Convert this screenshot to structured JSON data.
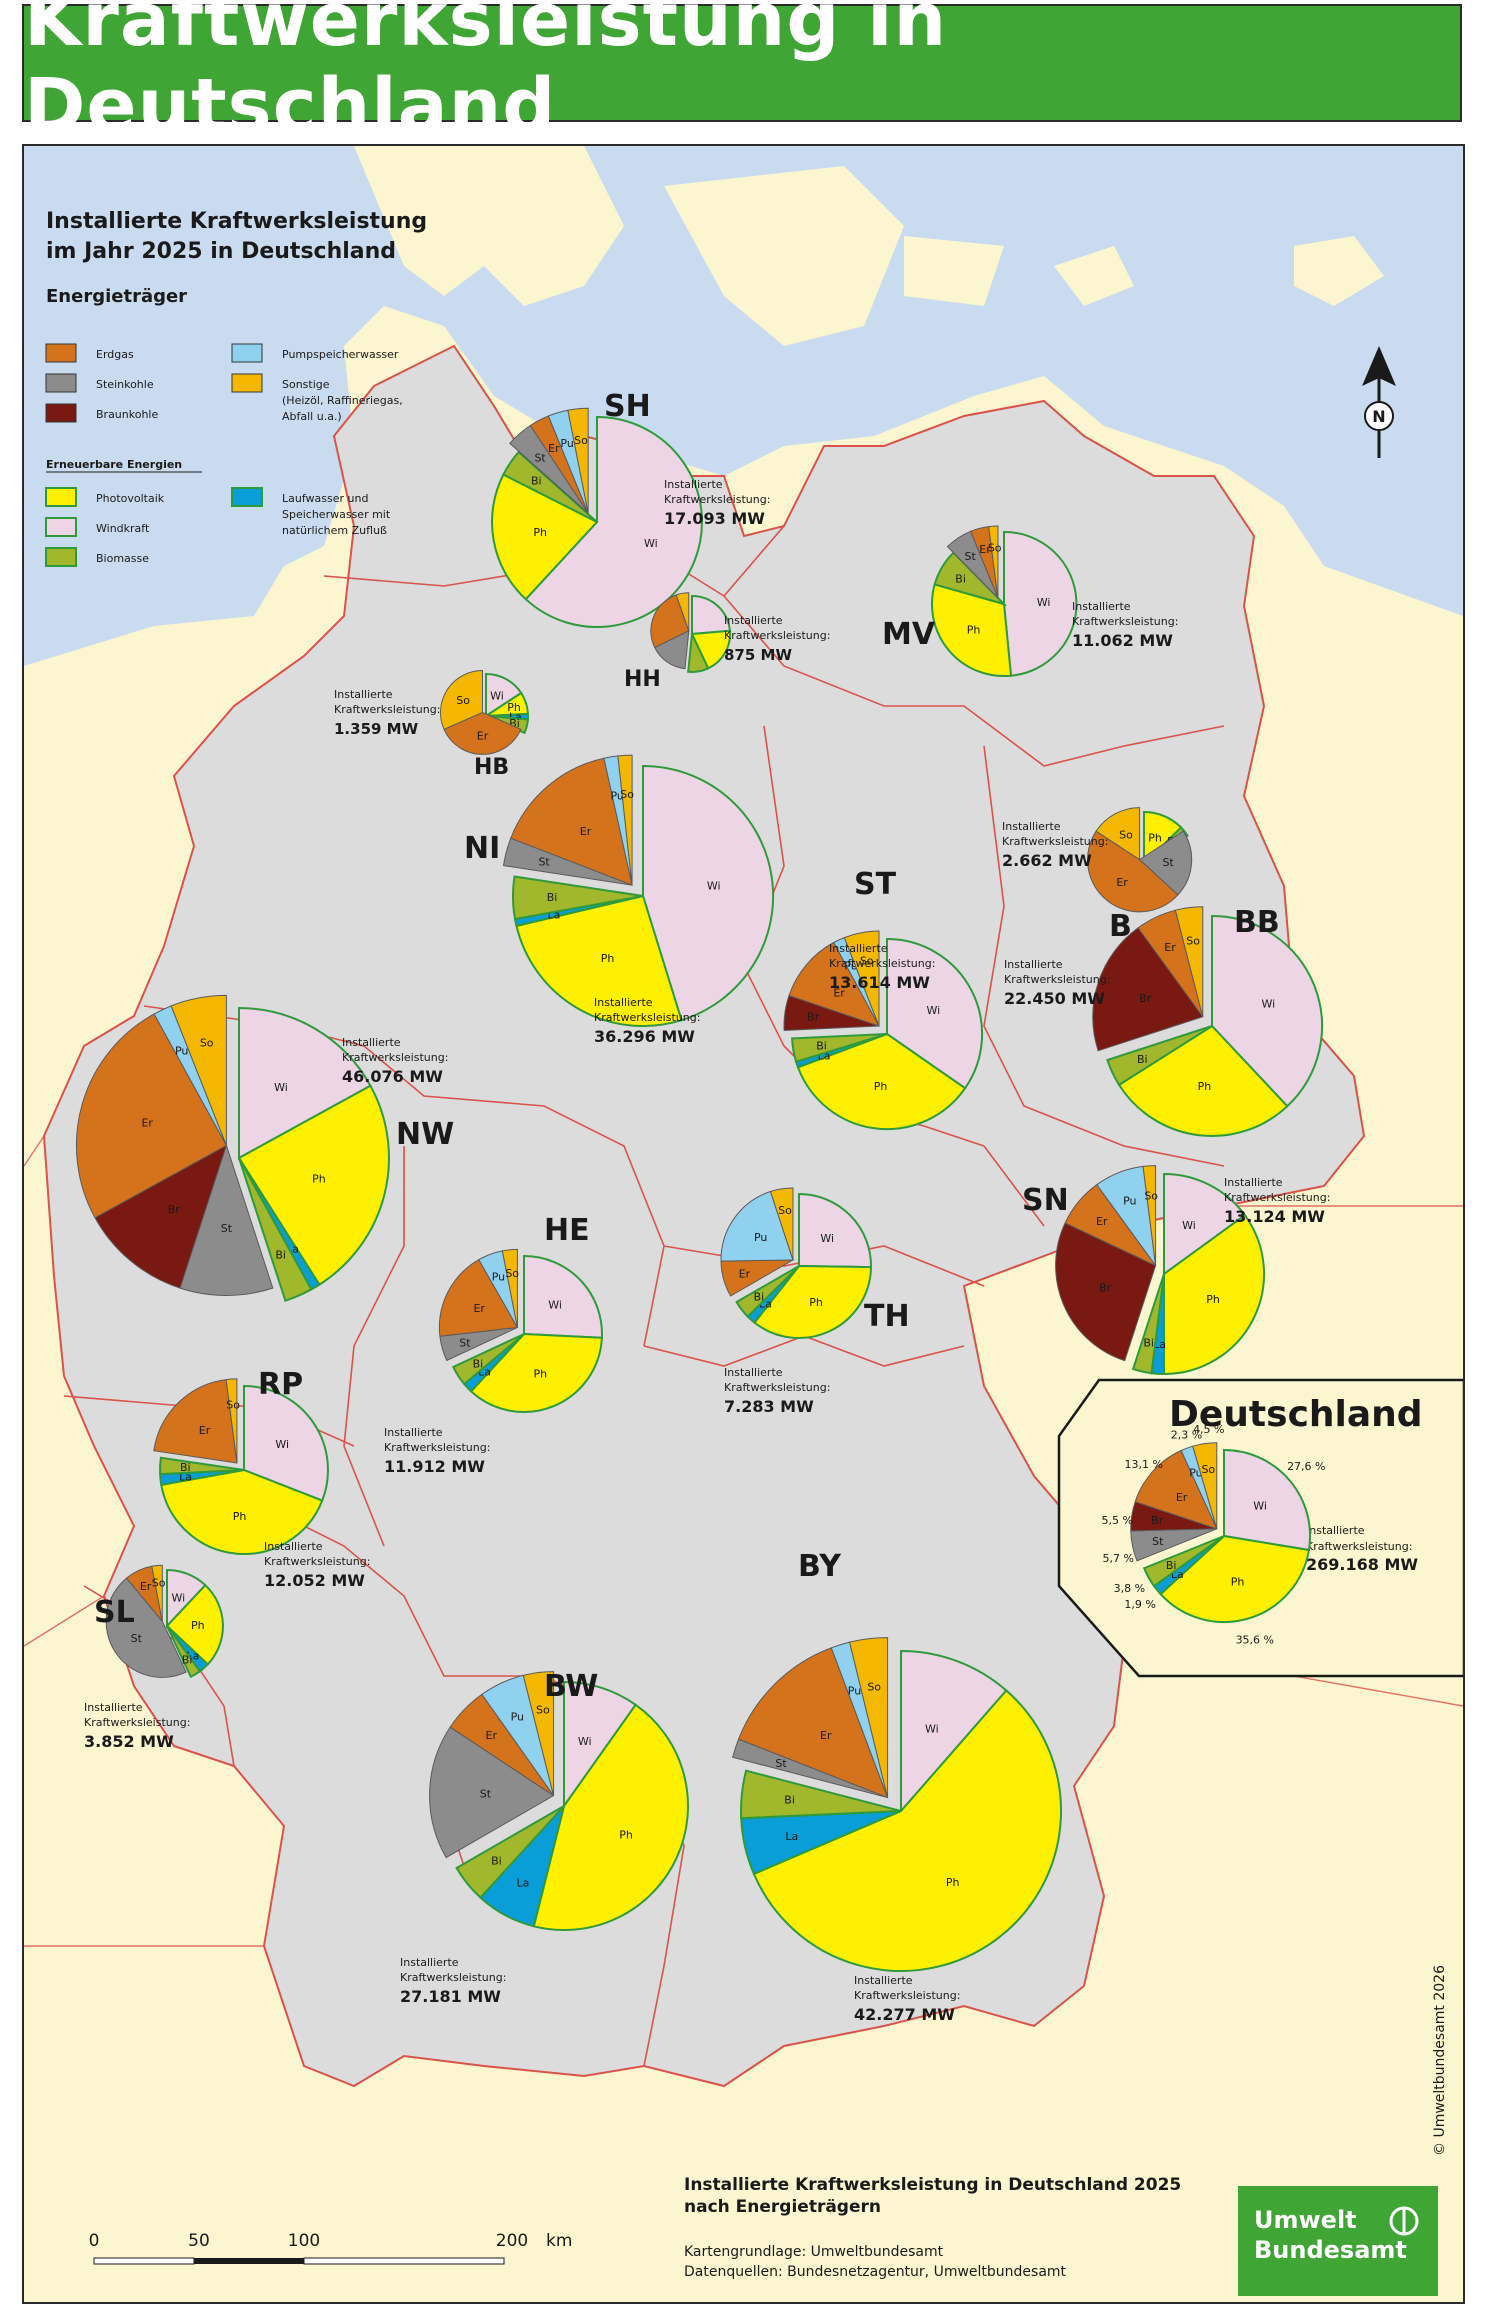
{
  "title": "Kraftwerksleistung in Deutschland",
  "legend": {
    "heading_line1": "Installierte Kraftwerksleistung",
    "heading_line2": "im Jahr 2025 in Deutschland",
    "subheading": "Energieträger",
    "renewables_heading": "Erneuerbare Energien",
    "conventional": [
      {
        "key": "Er",
        "label": "Erdgas",
        "color": "#d4731c"
      },
      {
        "key": "St",
        "label": "Steinkohle",
        "color": "#8c8c8c"
      },
      {
        "key": "Br",
        "label": "Braunkohle",
        "color": "#7a1812"
      },
      {
        "key": "Pu",
        "label": "Pumpspeicherwasser",
        "color": "#8fd1ee"
      },
      {
        "key": "So",
        "label": "Sonstige",
        "label2": "(Heizöl, Raffineriegas,",
        "label3": "Abfall u.a.)",
        "color": "#f5b800"
      }
    ],
    "renewable": [
      {
        "key": "Ph",
        "label": "Photovoltaik",
        "color": "#fff000"
      },
      {
        "key": "Wi",
        "label": "Windkraft",
        "color": "#edd5e6"
      },
      {
        "key": "Bi",
        "label": "Biomasse",
        "color": "#a2b82c"
      },
      {
        "key": "La",
        "label": "Laufwasser und",
        "label2": "Speicherwasser mit",
        "label3": "natürlichem Zufluß",
        "color": "#0a9ed8"
      }
    ]
  },
  "capacity_label_line1": "Installierte",
  "capacity_label_line2": "Kraftwerksleistung:",
  "states": [
    {
      "code": "SH",
      "capacity": "17.093 MW"
    },
    {
      "code": "MV",
      "capacity": "11.062 MW"
    },
    {
      "code": "HH",
      "capacity": "875 MW"
    },
    {
      "code": "HB",
      "capacity": "1.359 MW"
    },
    {
      "code": "NI",
      "capacity": "36.296 MW"
    },
    {
      "code": "B",
      "capacity": "2.662 MW"
    },
    {
      "code": "BB",
      "capacity": "22.450 MW"
    },
    {
      "code": "ST",
      "capacity": "13.614 MW"
    },
    {
      "code": "NW",
      "capacity": "46.076 MW"
    },
    {
      "code": "HE",
      "capacity": "11.912 MW"
    },
    {
      "code": "TH",
      "capacity": "7.283 MW"
    },
    {
      "code": "SN",
      "capacity": "13.124 MW"
    },
    {
      "code": "RP",
      "capacity": "12.052 MW"
    },
    {
      "code": "SL",
      "capacity": "3.852 MW"
    },
    {
      "code": "BW",
      "capacity": "27.181 MW"
    },
    {
      "code": "BY",
      "capacity": "42.277 MW"
    }
  ],
  "germany": {
    "name": "Deutschland",
    "capacity": "269.168 MW",
    "shares": [
      {
        "key": "Wi",
        "percent": 27.6,
        "label": "27,6 %"
      },
      {
        "key": "Ph",
        "percent": 35.6,
        "label": "35,6 %"
      },
      {
        "key": "La",
        "percent": 1.9,
        "label": "1,9 %"
      },
      {
        "key": "Bi",
        "percent": 3.8,
        "label": "3,8 %"
      },
      {
        "key": "St",
        "percent": 5.7,
        "label": "5,7 %"
      },
      {
        "key": "Br",
        "percent": 5.5,
        "label": "5,5 %"
      },
      {
        "key": "Er",
        "percent": 13.1,
        "label": "13,1 %"
      },
      {
        "key": "Pu",
        "percent": 2.3,
        "label": "2,3 %"
      },
      {
        "key": "So",
        "percent": 4.5,
        "label": "4,5 %"
      }
    ]
  },
  "north_arrow": "N",
  "scale": {
    "ticks": [
      "0",
      "50",
      "100",
      "200"
    ],
    "unit": "km"
  },
  "footer": {
    "title_line1": "Installierte Kraftwerksleistung in Deutschland 2025",
    "title_line2": "nach Energieträgern",
    "source_map": "Kartengrundlage:  Umweltbundesamt",
    "source_data": "Datenquellen:  Bundesnetzagentur, Umweltbundesamt"
  },
  "logo": {
    "line1": "Umwelt",
    "line2": "Bundesamt"
  },
  "copyright": "© Umweltbundesamt 2026"
}
